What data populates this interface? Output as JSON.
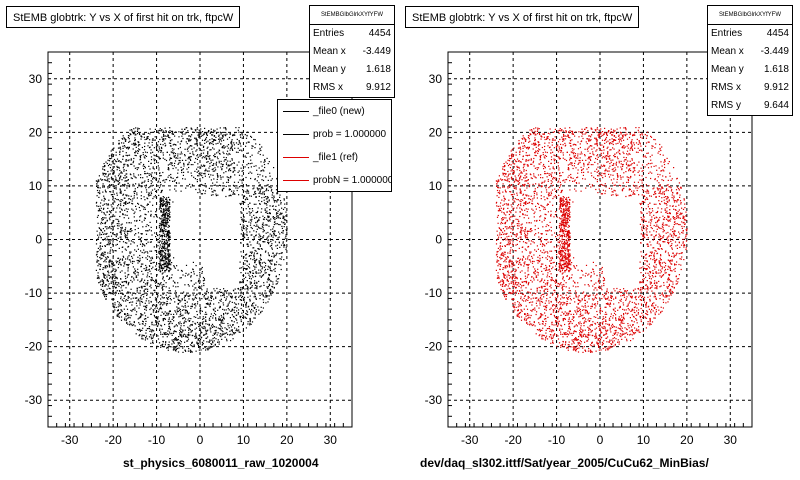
{
  "panels": [
    {
      "title": "StEMB globtrk: Y vs X of first hit on trk, ftpcW",
      "stats_header": "StEMBGlbGlrkXYfYFW",
      "stats": [
        {
          "label": "Entries",
          "value": "4454"
        },
        {
          "label": "Mean x",
          "value": "-3.449"
        },
        {
          "label": "Mean y",
          "value": "1.618"
        },
        {
          "label": "RMS x",
          "value": "9.912"
        }
      ],
      "color": "#000000",
      "footer": "st_physics_6080011_raw_1020004"
    },
    {
      "title": "StEMB globtrk: Y vs X of first hit on trk, ftpcW",
      "stats_header": "StEMBGlbGlrkXYfYFW",
      "stats": [
        {
          "label": "Entries",
          "value": "4454"
        },
        {
          "label": "Mean x",
          "value": "-3.449"
        },
        {
          "label": "Mean y",
          "value": "1.618"
        },
        {
          "label": "RMS x",
          "value": "9.912"
        },
        {
          "label": "RMS y",
          "value": "9.644"
        }
      ],
      "color": "#dd0000",
      "footer": "dev/daq_sl302.ittf/Sat/year_2005/CuCu62_MinBias/"
    }
  ],
  "legend": [
    {
      "label": "_file0 (new)",
      "color": "#000000"
    },
    {
      "label": "prob = 1.000000",
      "color": "#000000"
    },
    {
      "label": "_file1 (ref)",
      "color": "#dd0000"
    },
    {
      "label": "probN = 1.000000",
      "color": "#dd0000"
    }
  ],
  "chart_data": [
    {
      "type": "scatter",
      "title": "StEMB globtrk: Y vs X of first hit on trk, ftpcW",
      "xlim": [
        -35,
        35
      ],
      "ylim": [
        -35,
        35
      ],
      "xticks": [
        -30,
        -20,
        -10,
        0,
        10,
        20,
        30
      ],
      "yticks": [
        -30,
        -20,
        -10,
        0,
        10,
        20,
        30
      ],
      "grid": true,
      "series": [
        {
          "name": "_file0 (new)",
          "color": "#000000",
          "entries": 4454
        }
      ]
    },
    {
      "type": "scatter",
      "title": "StEMB globtrk: Y vs X of first hit on trk, ftpcW",
      "xlim": [
        -35,
        35
      ],
      "ylim": [
        -35,
        35
      ],
      "xticks": [
        -30,
        -20,
        -10,
        0,
        10,
        20,
        30
      ],
      "yticks": [
        -30,
        -20,
        -10,
        0,
        10,
        20,
        30
      ],
      "grid": true,
      "series": [
        {
          "name": "_file1 (ref)",
          "color": "#dd0000",
          "entries": 4454
        }
      ]
    }
  ]
}
